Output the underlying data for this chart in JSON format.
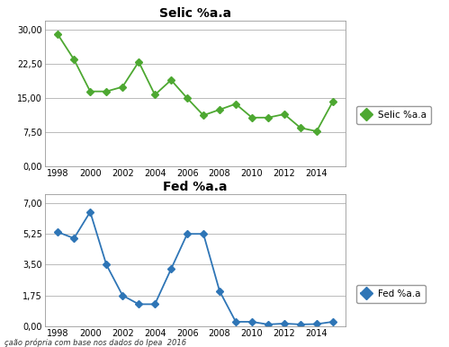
{
  "selic_years": [
    1998,
    1999,
    2000,
    2001,
    2002,
    2003,
    2004,
    2005,
    2006,
    2007,
    2008,
    2009,
    2010,
    2011,
    2012,
    2013,
    2014,
    2015
  ],
  "selic_values": [
    29.0,
    23.5,
    16.5,
    16.5,
    17.5,
    23.0,
    15.75,
    19.0,
    15.0,
    11.25,
    12.5,
    13.75,
    10.75,
    10.75,
    11.5,
    8.5,
    7.75,
    14.25
  ],
  "fed_years": [
    1998,
    1999,
    2000,
    2001,
    2002,
    2003,
    2004,
    2005,
    2006,
    2007,
    2008,
    2009,
    2010,
    2011,
    2012,
    2013,
    2014,
    2015
  ],
  "fed_values": [
    5.35,
    5.0,
    6.5,
    3.5,
    1.75,
    1.25,
    1.25,
    3.25,
    5.25,
    5.25,
    2.0,
    0.25,
    0.25,
    0.1,
    0.15,
    0.1,
    0.12,
    0.25
  ],
  "selic_title": "Selic %a.a",
  "fed_title": "Fed %a.a",
  "selic_color": "#4da831",
  "fed_color": "#2e75b6",
  "selic_yticks": [
    0.0,
    7.5,
    15.0,
    22.5,
    30.0
  ],
  "selic_ytick_labels": [
    "0,00",
    "7,50",
    "15,00",
    "22,50",
    "30,00"
  ],
  "fed_yticks": [
    0.0,
    1.75,
    3.5,
    5.25,
    7.0
  ],
  "fed_ytick_labels": [
    "0,00",
    "1,75",
    "3,50",
    "5,25",
    "7,00"
  ],
  "xtick_labels": [
    "1998",
    "2000",
    "2002",
    "2004",
    "2006",
    "2008",
    "2010",
    "2012",
    "2014"
  ],
  "xtick_values": [
    1998,
    2000,
    2002,
    2004,
    2006,
    2008,
    2010,
    2012,
    2014
  ],
  "source_text": "çaão própria com base nos dados do Ipea  2016",
  "background_color": "#ffffff",
  "plot_bg_color": "#ffffff",
  "grid_color": "#b0b0b0",
  "border_color": "#999999"
}
